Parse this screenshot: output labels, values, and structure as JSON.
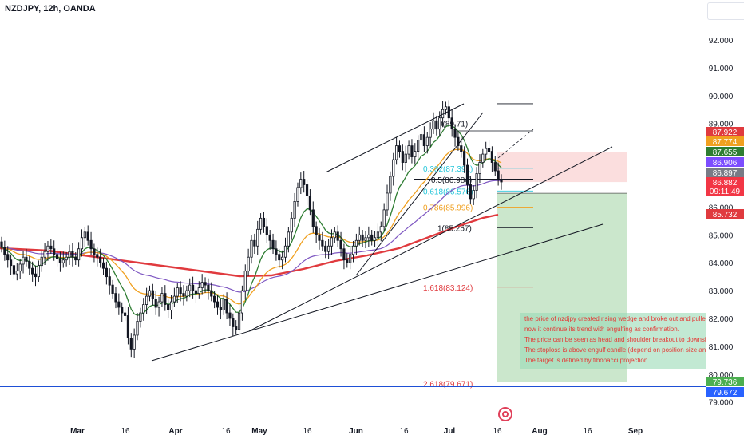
{
  "header": {
    "symbol": "NZDJPY, 12h, OANDA"
  },
  "icons": {
    "watermark": "tradingview-logo-icon"
  },
  "colors": {
    "candle": "#131722",
    "ma_red": "#e03a3e",
    "ma_green": "#2e7d32",
    "ma_orange": "#f0a020",
    "ma_purple": "#7e57c2",
    "stop_zone": "#fbdada",
    "target_zone": "#c8e6c9",
    "support_line": "#1e4fd6"
  },
  "chart_data": {
    "type": "candlestick",
    "ylim": [
      78.6,
      92.9
    ],
    "y_ticks": [
      "92.000",
      "91.000",
      "90.000",
      "89.000",
      "86.000",
      "85.000",
      "84.000",
      "83.000",
      "82.000",
      "81.000",
      "80.000",
      "79.000"
    ],
    "x_ticks": [
      "Mar",
      "16",
      "Apr",
      "16",
      "May",
      "16",
      "Jun",
      "16",
      "Jul",
      "16",
      "Aug",
      "16",
      "Sep"
    ],
    "price_labels": [
      {
        "value": "87.922",
        "color": "#e03a3e"
      },
      {
        "value": "87.774",
        "color": "#f0a020"
      },
      {
        "value": "87.655",
        "color": "#2e7d32"
      },
      {
        "value": "86.906",
        "color": "#7c4dff"
      },
      {
        "value": "86.897",
        "color": "#787b86"
      },
      {
        "value": "86.882",
        "color": "#f23645"
      },
      {
        "value": "09:11:49",
        "color": "#f23645"
      },
      {
        "value": "85.732",
        "color": "#e03a3e"
      },
      {
        "value": "79.736",
        "color": "#4caf50"
      },
      {
        "value": "79.672",
        "color": "#2962ff"
      }
    ],
    "fibonacci": [
      {
        "label": "0(89.71)",
        "value": 89.71,
        "color": "#131722"
      },
      {
        "label": "0.382(87.391)",
        "value": 87.391,
        "color": "#26c6da"
      },
      {
        "label": "0.5(86.984)",
        "value": 86.984,
        "color": "#131722"
      },
      {
        "label": "0.618(86.576)",
        "value": 86.576,
        "color": "#26c6da"
      },
      {
        "label": "0.786(85.996)",
        "value": 85.996,
        "color": "#f0a020"
      },
      {
        "label": "1(85.257)",
        "value": 85.257,
        "color": "#131722"
      },
      {
        "label": "1.618(83.124)",
        "value": 83.124,
        "color": "#e03a3e"
      },
      {
        "label": "2.618(79.671)",
        "value": 79.671,
        "color": "#e03a3e"
      }
    ],
    "support_level": 79.671,
    "trade": {
      "entry": 86.897,
      "stop": 87.922,
      "target": 79.736
    },
    "annotation_lines": [
      "the price of nzdjpy created rising wedge and broke out and pulled",
      "now it continue its trend with engulfing as confirmation.",
      "The price can be seen as head and shoulder breakout to downside",
      "The stoploss is above engulf candle (depend on position size and",
      "The target is defined by fibonacci projection."
    ],
    "closes": [
      84.55,
      84.3,
      84.1,
      83.9,
      83.6,
      83.7,
      83.95,
      84.2,
      84.05,
      83.8,
      83.6,
      83.5,
      83.9,
      84.2,
      84.4,
      84.6,
      84.5,
      84.3,
      84.15,
      84.0,
      84.1,
      84.2,
      84.4,
      84.2,
      84.1,
      84.5,
      84.9,
      85.1,
      84.8,
      84.5,
      84.3,
      84.2,
      84.0,
      83.8,
      83.5,
      83.2,
      82.9,
      82.6,
      82.4,
      82.2,
      82.1,
      81.3,
      80.9,
      81.4,
      81.9,
      82.2,
      82.5,
      82.8,
      83.0,
      82.7,
      82.4,
      82.6,
      82.9,
      82.5,
      82.3,
      82.6,
      82.8,
      83.1,
      82.9,
      82.8,
      83.0,
      83.2,
      83.0,
      82.9,
      83.1,
      83.3,
      83.2,
      83.0,
      82.8,
      82.6,
      82.4,
      82.3,
      82.7,
      82.2,
      82.0,
      81.7,
      81.6,
      82.2,
      83.0,
      83.7,
      84.2,
      84.8,
      84.6,
      85.2,
      85.6,
      85.3,
      85.0,
      84.8,
      84.5,
      84.3,
      84.1,
      84.2,
      84.6,
      85.1,
      85.6,
      86.2,
      86.7,
      87.0,
      86.8,
      86.4,
      85.9,
      85.3,
      85.0,
      84.8,
      84.6,
      84.4,
      84.6,
      84.9,
      85.1,
      84.8,
      84.5,
      84.1,
      84.0,
      84.3,
      84.6,
      84.8,
      85.0,
      84.8,
      84.9,
      85.0,
      84.8,
      84.9,
      85.1,
      85.3,
      85.9,
      86.5,
      87.1,
      87.7,
      88.2,
      88.0,
      87.6,
      87.9,
      88.2,
      87.8,
      88.0,
      88.4,
      88.6,
      88.2,
      88.5,
      88.8,
      89.1,
      88.8,
      89.2,
      89.5,
      89.6,
      89.2,
      88.8,
      88.5,
      88.2,
      88.0,
      87.5,
      86.8,
      86.3,
      86.6,
      87.2,
      87.6,
      87.9,
      88.1,
      88.0,
      87.6,
      87.3,
      87.0,
      86.9
    ]
  }
}
